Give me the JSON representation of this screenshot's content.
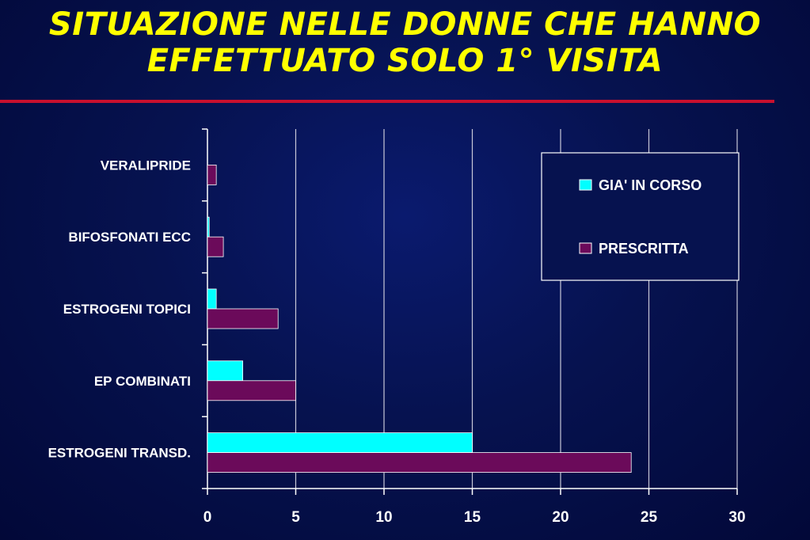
{
  "title_lines": [
    "SITUAZIONE NELLE DONNE CHE HANNO",
    "EFFETTUATO SOLO 1° VISITA"
  ],
  "colors": {
    "title": "#ffff00",
    "rule": "#c8102e",
    "gia_in_corso": "#00ffff",
    "prescritta": "#6b0a5a"
  },
  "chart_data": {
    "type": "bar",
    "orientation": "horizontal",
    "categories": [
      "VERALIPRIDE",
      "BIFOSFONATI ECC",
      "ESTROGENI TOPICI",
      "EP COMBINATI",
      "ESTROGENI TRANSD."
    ],
    "series": [
      {
        "name": "GIA' IN CORSO",
        "values": [
          0,
          0.1,
          0.5,
          2,
          15
        ]
      },
      {
        "name": "PRESCRITTA",
        "values": [
          0.5,
          0.9,
          4,
          5,
          24
        ]
      }
    ],
    "xlim": [
      0,
      30
    ],
    "xticks": [
      "0",
      "5",
      "10",
      "15",
      "20",
      "25",
      "30"
    ],
    "grid": true,
    "legend": "top-right"
  }
}
